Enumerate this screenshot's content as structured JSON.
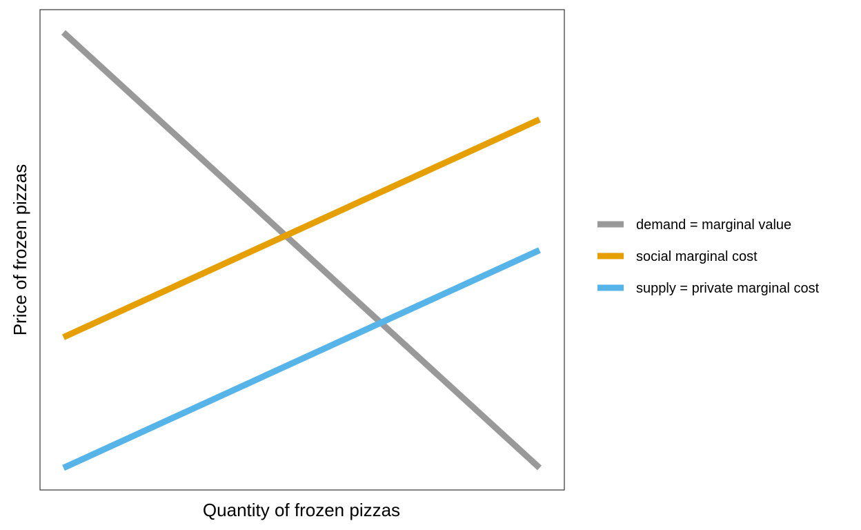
{
  "chart_data": {
    "type": "line",
    "title": "",
    "xlabel": "Quantity of frozen pizzas",
    "ylabel": "Price of frozen pizzas",
    "xlim": [
      0,
      1
    ],
    "ylim": [
      0,
      1
    ],
    "x_ticks_visible": false,
    "y_ticks_visible": false,
    "grid": false,
    "legend_position": "right",
    "series": [
      {
        "name": "demand = marginal value",
        "color": "#999999",
        "x": [
          0,
          1
        ],
        "y": [
          1,
          0
        ]
      },
      {
        "name": "social marginal cost",
        "color": "#E69F00",
        "x": [
          0,
          1
        ],
        "y": [
          0.3,
          0.8
        ]
      },
      {
        "name": "supply = private marginal cost",
        "color": "#56B4E9",
        "x": [
          0,
          1
        ],
        "y": [
          0,
          0.5
        ]
      }
    ]
  }
}
